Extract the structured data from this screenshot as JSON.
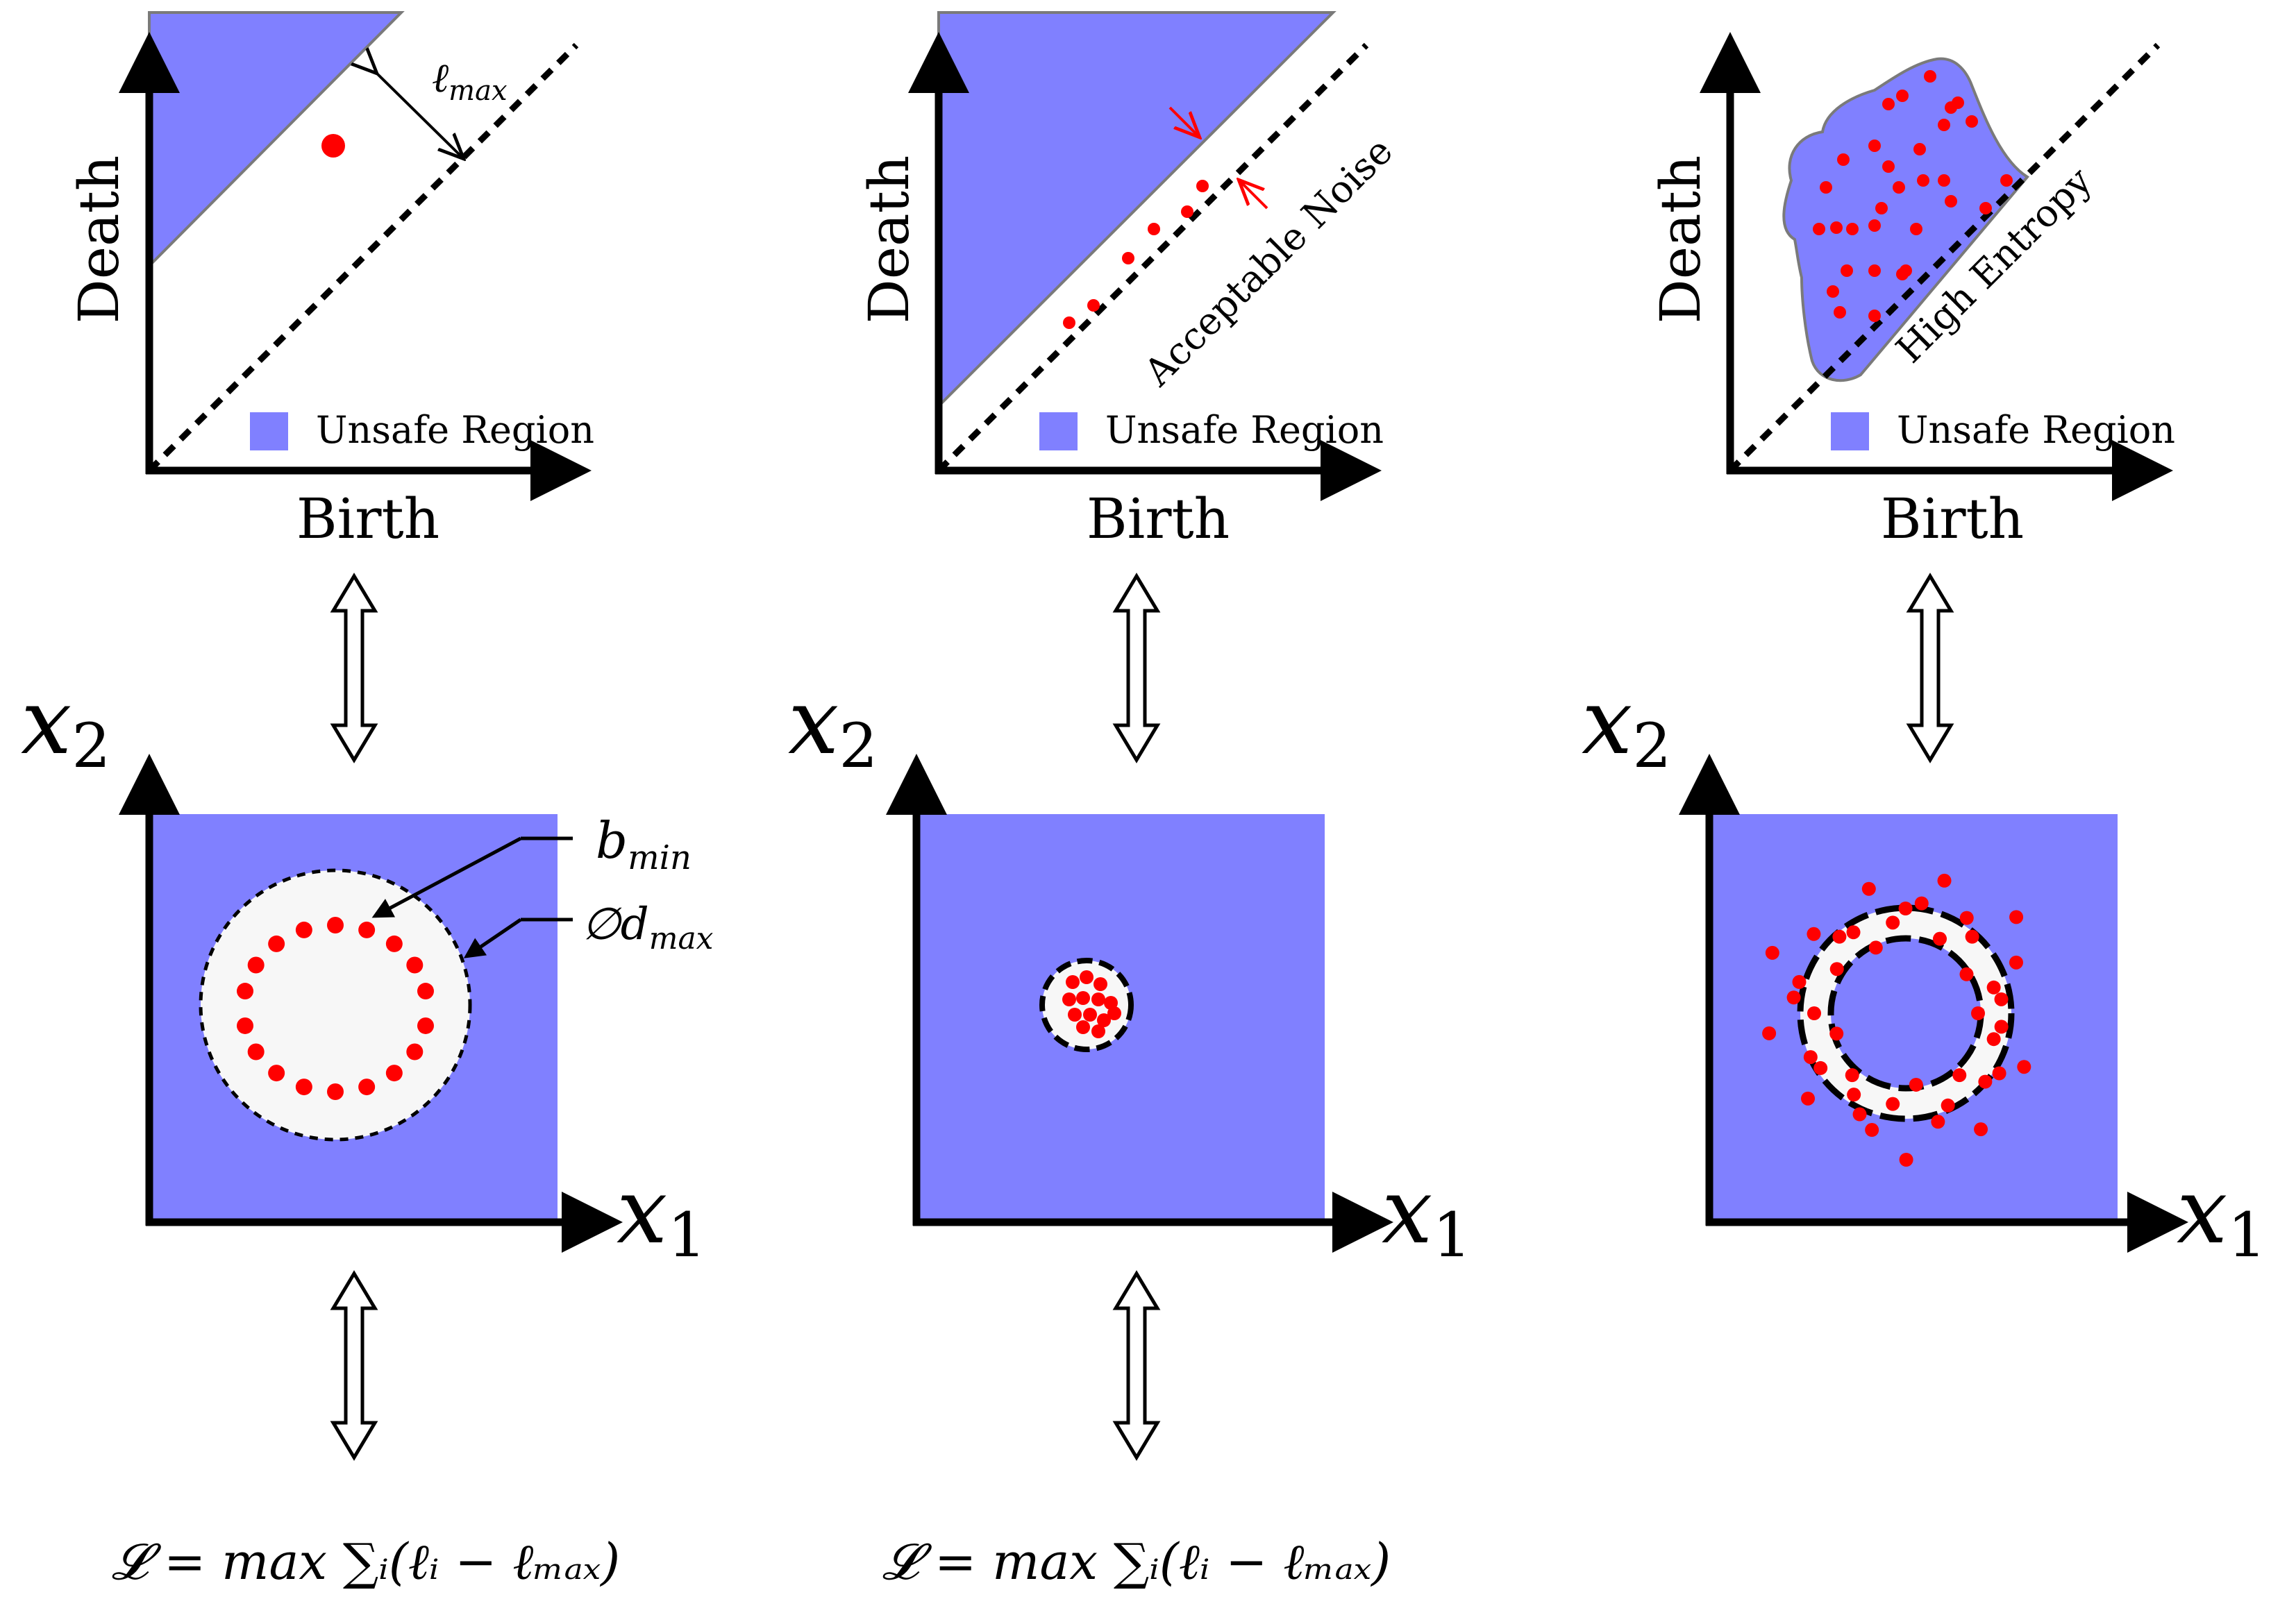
{
  "colors": {
    "unsafe": "#8080ff",
    "safe": "#f7f7f7",
    "point": "#ff0000",
    "axis": "#000000",
    "region_edge": "#7a7a7a"
  },
  "panels": [
    {
      "id": "left",
      "diagram": {
        "xlabel": "Birth",
        "ylabel": "Death",
        "legend": "Unsafe Region",
        "annotation_lmax": "ℓ",
        "annotation_lmax_sub": "max"
      },
      "space": {
        "x_axis_var": "x",
        "x_axis_sub": "1",
        "y_axis_var": "x",
        "y_axis_sub": "2",
        "callout_bmin": "b",
        "callout_bmin_sub": "min",
        "callout_dmax_prefix": "∅d",
        "callout_dmax_sub": "max"
      },
      "loss": "𝓛 = max ∑ᵢ(ℓᵢ − ℓₘₐₓ)"
    },
    {
      "id": "middle",
      "diagram": {
        "xlabel": "Birth",
        "ylabel": "Death",
        "legend": "Unsafe Region",
        "diag_text": "Acceptable Noise"
      },
      "space": {
        "x_axis_var": "x",
        "x_axis_sub": "1",
        "y_axis_var": "x",
        "y_axis_sub": "2"
      },
      "loss": "𝓛 = max ∑ᵢ(ℓᵢ − ℓₘₐₓ)"
    },
    {
      "id": "right",
      "diagram": {
        "xlabel": "Birth",
        "ylabel": "Death",
        "legend": "Unsafe Region",
        "diag_text": "High Entropy"
      },
      "space": {
        "x_axis_var": "x",
        "x_axis_sub": "1",
        "y_axis_var": "x",
        "y_axis_sub": "2"
      }
    }
  ]
}
